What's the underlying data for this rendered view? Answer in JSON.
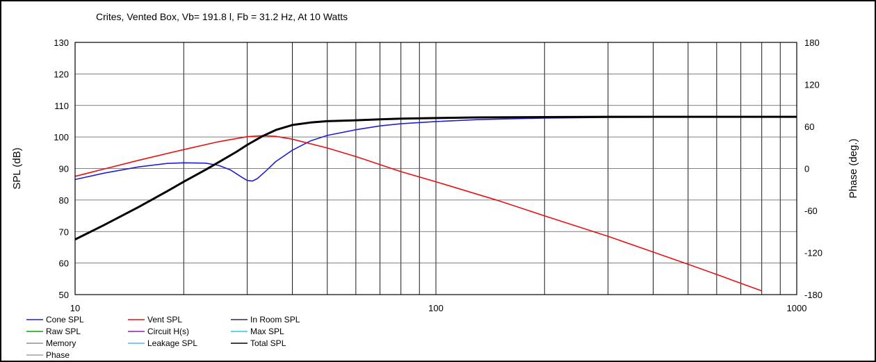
{
  "chart_data": {
    "type": "line",
    "title": "Crites,  Vented Box, Vb= 191.8 l,  Fb = 31.2 Hz,  At 10 Watts",
    "xlabel": "",
    "ylabel": "SPL (dB)",
    "y2label": "Phase (deg.)",
    "xscale": "log",
    "xlim": [
      10,
      1000
    ],
    "ylim": [
      50,
      130
    ],
    "y2lim": [
      -180,
      180
    ],
    "xtick_labels": [
      {
        "v": 10,
        "label": "10"
      },
      {
        "v": 100,
        "label": "100"
      },
      {
        "v": 1000,
        "label": "1000"
      }
    ],
    "xgrid": [
      20,
      30,
      40,
      50,
      60,
      70,
      80,
      90,
      100,
      200,
      300,
      400,
      500,
      600,
      700,
      800,
      900
    ],
    "yticks": [
      50,
      60,
      70,
      80,
      90,
      100,
      110,
      120,
      130
    ],
    "y2ticks": [
      -180,
      -120,
      -60,
      0,
      60,
      120,
      180
    ],
    "grid": true,
    "legend_position": "bottom",
    "series": [
      {
        "name": "Cone SPL",
        "color": "#1f1fd2",
        "x": [
          10,
          12,
          15,
          18,
          20,
          23,
          25,
          27,
          29,
          30,
          31,
          32,
          34,
          36,
          40,
          45,
          50,
          60,
          70,
          80,
          100,
          130,
          200,
          300,
          500,
          1000
        ],
        "y": [
          86.5,
          88.5,
          90.5,
          91.6,
          91.8,
          91.7,
          91.0,
          89.5,
          87.2,
          86.2,
          86.0,
          86.8,
          89.5,
          92.2,
          95.8,
          98.8,
          100.5,
          102.3,
          103.5,
          104.2,
          104.9,
          105.5,
          106.0,
          106.2,
          106.3,
          106.3
        ]
      },
      {
        "name": "Vent SPL",
        "color": "#e81010",
        "x": [
          10,
          12,
          15,
          20,
          25,
          30,
          33,
          36,
          40,
          50,
          60,
          80,
          100,
          150,
          200,
          300,
          400,
          500,
          600,
          700,
          800
        ],
        "y": [
          87.5,
          89.8,
          92.6,
          96.0,
          98.5,
          100.1,
          100.4,
          100.2,
          99.3,
          96.5,
          93.8,
          89.0,
          85.8,
          79.7,
          75.0,
          68.5,
          63.5,
          59.6,
          56.4,
          53.6,
          51.2
        ]
      },
      {
        "name": "Total SPL",
        "color": "#000000",
        "x": [
          10,
          12,
          15,
          18,
          20,
          23,
          25,
          28,
          30,
          33,
          36,
          40,
          45,
          50,
          60,
          70,
          80,
          100,
          130,
          200,
          300,
          500,
          1000
        ],
        "y": [
          67.5,
          72.0,
          77.8,
          82.8,
          85.8,
          89.6,
          92.0,
          95.3,
          97.5,
          100.2,
          102.2,
          103.8,
          104.6,
          105.0,
          105.3,
          105.6,
          105.8,
          106.0,
          106.2,
          106.3,
          106.4,
          106.4,
          106.4
        ]
      }
    ],
    "legend": [
      {
        "label": "Cone SPL",
        "color": "#1f1fd2"
      },
      {
        "label": "Vent SPL",
        "color": "#e81010"
      },
      {
        "label": "In Room SPL",
        "color": "#1c3050"
      },
      {
        "label": "Raw SPL",
        "color": "#10a010"
      },
      {
        "label": "Circuit H(s)",
        "color": "#9020a0"
      },
      {
        "label": "Max SPL",
        "color": "#30c8d8"
      },
      {
        "label": "Memory",
        "color": "#909090"
      },
      {
        "label": "Leakage SPL",
        "color": "#50b8e8"
      },
      {
        "label": "Total SPL",
        "color": "#000000"
      },
      {
        "label": "Phase",
        "color": "#a0a0a0"
      }
    ]
  }
}
